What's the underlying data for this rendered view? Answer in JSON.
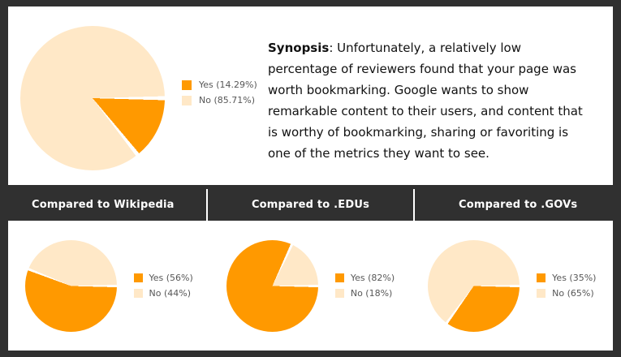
{
  "colors": {
    "accent_orange": "#ff9900",
    "pale_orange": "#ffe8c7",
    "frame_dark": "#303030",
    "header_text": "#ffffff",
    "legend_text": "#575757",
    "slice_gap": "#ffffff"
  },
  "synopsis": {
    "label": "Synopsis",
    "separator": ": ",
    "lines": [
      "Unfortunately, a relatively low",
      "percentage of reviewers found that your page was",
      "worth bookmarking. Google wants to show",
      "remarkable content to their users, and content that",
      "is worthy of bookmarking, sharing or favoriting is",
      "one of the metrics they want to see."
    ]
  },
  "chart_data": [
    {
      "type": "pie",
      "title": "",
      "labels": [
        "Yes",
        "No"
      ],
      "values": [
        14.29,
        85.71
      ],
      "legend": [
        "Yes (14.29%)",
        "No (85.71%)"
      ],
      "colors": [
        "#ff9900",
        "#ffe8c7"
      ],
      "legend_position": "right",
      "start_angle": "3-oclock-clockwise"
    },
    {
      "type": "pie",
      "title": "Compared to Wikipedia",
      "labels": [
        "Yes",
        "No"
      ],
      "values": [
        56,
        44
      ],
      "legend": [
        "Yes (56%)",
        "No (44%)"
      ],
      "colors": [
        "#ff9900",
        "#ffe8c7"
      ],
      "legend_position": "right",
      "start_angle": "3-oclock-clockwise"
    },
    {
      "type": "pie",
      "title": "Compared to .EDUs",
      "labels": [
        "Yes",
        "No"
      ],
      "values": [
        82,
        18
      ],
      "legend": [
        "Yes (82%)",
        "No (18%)"
      ],
      "colors": [
        "#ff9900",
        "#ffe8c7"
      ],
      "legend_position": "right",
      "start_angle": "3-oclock-clockwise"
    },
    {
      "type": "pie",
      "title": "Compared to .GOVs",
      "labels": [
        "Yes",
        "No"
      ],
      "values": [
        35,
        65
      ],
      "legend": [
        "Yes (35%)",
        "No (65%)"
      ],
      "colors": [
        "#ff9900",
        "#ffe8c7"
      ],
      "legend_position": "right",
      "start_angle": "3-oclock-clockwise"
    }
  ]
}
